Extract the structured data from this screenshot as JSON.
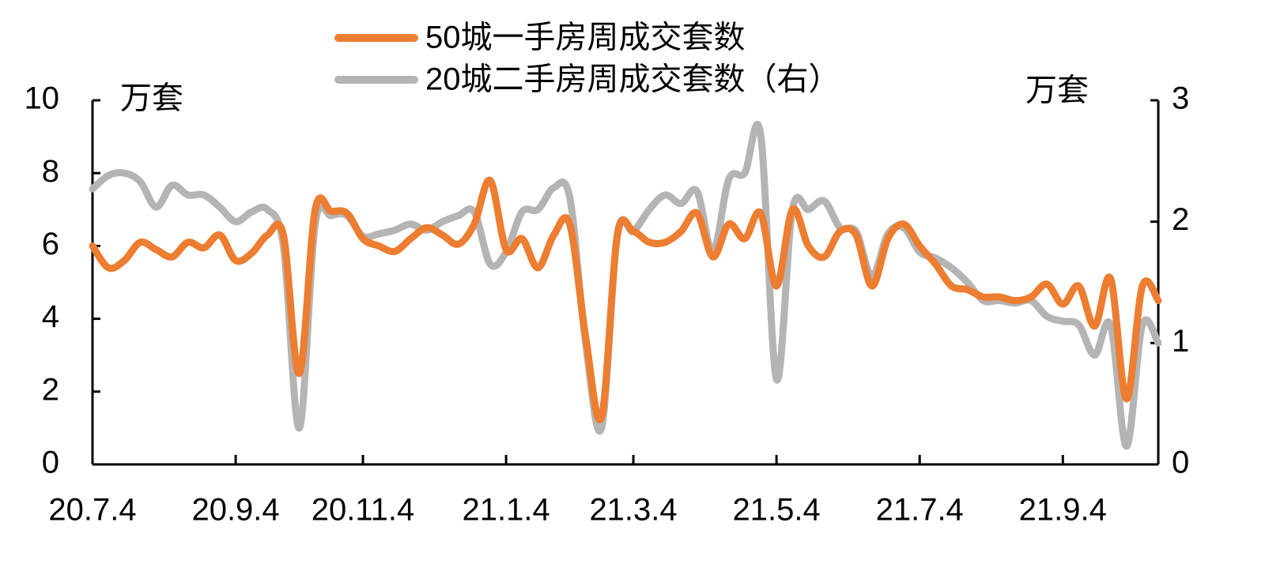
{
  "chart_data": {
    "type": "line",
    "y_label": "万套",
    "y2_label": "万套",
    "categories": [
      "20.7.4",
      null,
      null,
      null,
      null,
      null,
      null,
      null,
      null,
      "20.9.4",
      null,
      null,
      null,
      null,
      null,
      null,
      null,
      "20.11.4",
      null,
      null,
      null,
      null,
      null,
      null,
      null,
      null,
      "21.1.4",
      null,
      null,
      null,
      null,
      null,
      null,
      null,
      "21.3.4",
      null,
      null,
      null,
      null,
      null,
      null,
      null,
      null,
      "21.5.4",
      null,
      null,
      null,
      null,
      null,
      null,
      null,
      null,
      "21.7.4",
      null,
      null,
      null,
      null,
      null,
      null,
      null,
      null,
      "21.9.4",
      null,
      null,
      null,
      null,
      null,
      null
    ],
    "series": [
      {
        "name": "50城一手房周成交套数",
        "color": "#ed7d31",
        "values": [
          6.0,
          5.4,
          5.6,
          6.1,
          5.9,
          5.7,
          6.1,
          5.95,
          6.3,
          5.6,
          5.8,
          6.3,
          6.3,
          2.5,
          7.0,
          6.95,
          6.9,
          6.2,
          6.0,
          5.85,
          6.2,
          6.5,
          6.3,
          6.05,
          6.6,
          7.8,
          5.9,
          6.2,
          5.4,
          6.3,
          6.6,
          3.5,
          1.3,
          6.3,
          6.4,
          6.1,
          6.1,
          6.4,
          6.9,
          5.7,
          6.6,
          6.2,
          6.9,
          4.9,
          7.0,
          6.0,
          5.7,
          6.4,
          6.3,
          4.9,
          6.2,
          6.6,
          6.0,
          5.5,
          4.9,
          4.8,
          4.6,
          4.6,
          4.5,
          4.6,
          4.95,
          4.4,
          4.9,
          3.8,
          5.1,
          1.8,
          4.9,
          4.5
        ]
      },
      {
        "name": "20城二手房周成交套数（右）",
        "color": "#b4b4b4",
        "axis": "y2",
        "values": [
          2.27,
          2.38,
          2.4,
          2.33,
          2.12,
          2.3,
          2.22,
          2.22,
          2.12,
          2.0,
          2.08,
          2.1,
          1.8,
          0.3,
          1.98,
          2.05,
          2.05,
          1.88,
          1.9,
          1.93,
          1.98,
          1.93,
          2.0,
          2.05,
          2.08,
          1.65,
          1.75,
          2.08,
          2.1,
          2.28,
          2.2,
          1.0,
          0.3,
          1.9,
          1.92,
          2.1,
          2.22,
          2.15,
          2.25,
          1.75,
          2.35,
          2.4,
          2.72,
          0.7,
          2.1,
          2.1,
          2.17,
          1.95,
          1.92,
          1.55,
          1.9,
          1.95,
          1.75,
          1.7,
          1.62,
          1.5,
          1.35,
          1.35,
          1.33,
          1.35,
          1.22,
          1.18,
          1.15,
          0.9,
          1.15,
          0.15,
          1.15,
          1.0
        ]
      }
    ],
    "ylim": [
      0,
      10
    ],
    "yticks": [
      0,
      2,
      4,
      6,
      8,
      10
    ],
    "y2lim": [
      0,
      3
    ],
    "y2ticks": [
      0,
      1,
      2,
      3
    ],
    "legend": "top"
  }
}
